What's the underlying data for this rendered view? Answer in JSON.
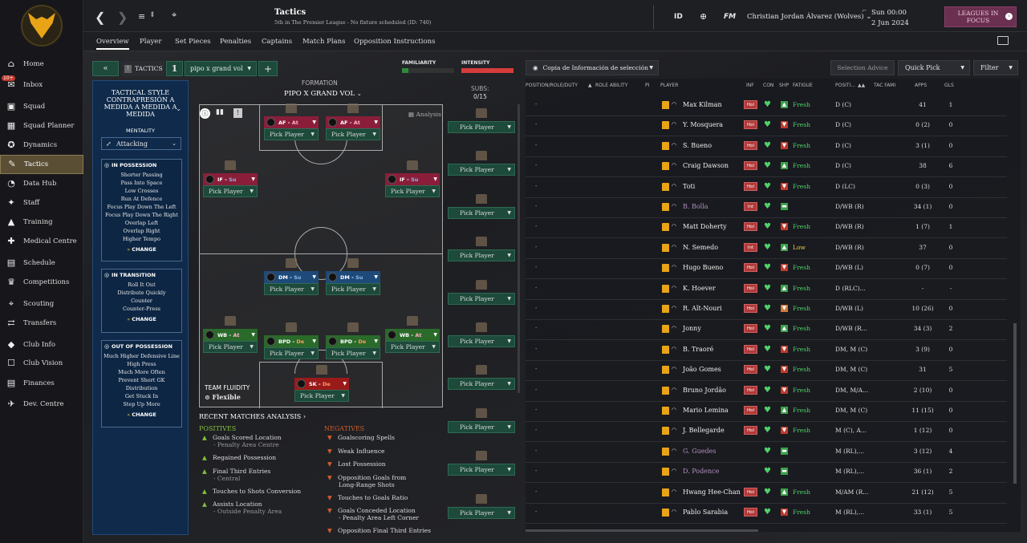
{
  "topbar": {
    "title": "Tactics",
    "subtitle": "5th in The Premier League - No fixture scheduled (ID: 740)",
    "id_label": "ID",
    "fm_label": "FM",
    "user": "Christian Jordan Álvarez (Wolves)",
    "time": "Sun 00:00",
    "date": "2 Jun 2024",
    "leagues_focus": "LEAGUES IN FOCUS"
  },
  "sidebar": {
    "inbox_badge": "10+",
    "items": [
      "Home",
      "Inbox",
      "Squad",
      "Squad Planner",
      "Dynamics",
      "Tactics",
      "Data Hub",
      "Staff",
      "Training",
      "Medical Centre",
      "Schedule",
      "Competitions",
      "Scouting",
      "Transfers",
      "Club Info",
      "Club Vision",
      "Finances",
      "Dev. Centre"
    ]
  },
  "subtabs": [
    "Overview",
    "Player",
    "Set Pieces",
    "Penalties",
    "Captains",
    "Match Plans",
    "Opposition Instructions"
  ],
  "tacbar": {
    "tactics_label": "TACTICS",
    "slot": "1",
    "tactic_name": "pipo x grand vol",
    "familiarity": "FAMILIARITY",
    "intensity": "INTENSITY"
  },
  "style": {
    "heading": "TACTICAL STYLE",
    "name": "CONTRAPRESIÓN A MEDIDA A MEDIDA A MEDIDA",
    "mentality_label": "MENTALITY",
    "mentality": "Attacking",
    "in_possession": {
      "title": "IN POSSESSION",
      "items": [
        "Shorter Passing",
        "Pass Into Space",
        "Low Crosses",
        "Run At Defence",
        "Focus Play Down The Left",
        "Focus Play Down The Right",
        "Overlap Left",
        "Overlap Right",
        "Higher Tempo"
      ]
    },
    "in_transition": {
      "title": "IN TRANSITION",
      "items": [
        "Roll It Out",
        "Distribute Quickly",
        "Counter",
        "Counter-Press"
      ]
    },
    "out_of_possession": {
      "title": "OUT OF POSSESSION",
      "items": [
        "Much Higher Defensive Line",
        "High Press",
        "Much More Often",
        "Prevent Short GK",
        "Distribution",
        "Get Stuck In",
        "Step Up More"
      ]
    },
    "change": "CHANGE"
  },
  "formation": {
    "label": "FORMATION",
    "name": "PIPO X GRAND VOL",
    "analysis": "Analysis",
    "fluidity_label": "TEAM FLUIDITY",
    "fluidity": "Flexible",
    "pick": "Pick Player",
    "positions": [
      {
        "role": "AF",
        "duty": "At",
        "color": "#8a1e3a"
      },
      {
        "role": "AF",
        "duty": "At",
        "color": "#8a1e3a"
      },
      {
        "role": "IF",
        "duty": "Su",
        "color": "#8a1e3a"
      },
      {
        "role": "IF",
        "duty": "Su",
        "color": "#8a1e3a"
      },
      {
        "role": "DM",
        "duty": "Su",
        "color": "#1e4a7a"
      },
      {
        "role": "DM",
        "duty": "Su",
        "color": "#1e4a7a"
      },
      {
        "role": "WB",
        "duty": "At",
        "color": "#2a6a2a"
      },
      {
        "role": "BPD",
        "duty": "De",
        "color": "#2a6a2a"
      },
      {
        "role": "BPD",
        "duty": "De",
        "color": "#2a6a2a"
      },
      {
        "role": "WB",
        "duty": "At",
        "color": "#2a6a2a"
      },
      {
        "role": "SK",
        "duty": "De",
        "color": "#9a1a1a"
      }
    ]
  },
  "subs": {
    "label": "SUBS:",
    "count": "0/15"
  },
  "recent": {
    "title": "RECENT MATCHES ANALYSIS",
    "positives_label": "POSITIVES",
    "negatives_label": "NEGATIVES",
    "positives": [
      {
        "t": "Goals Scored Location",
        "s": "- Penalty Area Centre"
      },
      {
        "t": "Regained Possession",
        "s": ""
      },
      {
        "t": "Final Third Entries",
        "s": "- Central"
      },
      {
        "t": "Touches to Shots Conversion",
        "s": ""
      },
      {
        "t": "Assists Location",
        "s": "- Outside Penalty Area"
      }
    ],
    "negatives": [
      {
        "t": "Goalscoring Spells",
        "s": ""
      },
      {
        "t": "Weak Influence",
        "s": ""
      },
      {
        "t": "Lost Possession",
        "s": ""
      },
      {
        "t": "Opposition Goals from",
        "s": "Long-Range Shots"
      },
      {
        "t": "Touches to Goals Ratio",
        "s": ""
      },
      {
        "t": "Goals Conceded Location",
        "s": "- Penalty Area Left Corner"
      },
      {
        "t": "Opposition Final Third Entries",
        "s": ""
      }
    ]
  },
  "right": {
    "copy_label": "Copia de Información de selección",
    "selection_advice": "Selection Advice",
    "quick_pick": "Quick Pick",
    "filter": "Filter",
    "headers": {
      "position": "POSITION/ROLE/DUTY",
      "role_ability": "ROLE ABILITY",
      "pi": "PI",
      "player": "PLAYER",
      "inf": "INF",
      "con": "CON",
      "shp": "SHP",
      "fatigue": "FATIGUE",
      "posit": "POSITI...",
      "tac": "TAC FAMI",
      "apps": "APPS",
      "gls": "GLS"
    },
    "players": [
      {
        "name": "Max Kilman",
        "inf": "Hol",
        "shp": "up",
        "fat": "Fresh",
        "pos": "D (C)",
        "apps": "41",
        "gls": "1"
      },
      {
        "name": "Y. Mosquera",
        "inf": "Hol",
        "shp": "down",
        "fat": "Fresh",
        "pos": "D (C)",
        "apps": "0 (2)",
        "gls": "0"
      },
      {
        "name": "S. Bueno",
        "inf": "Hol",
        "shp": "down",
        "fat": "Fresh",
        "pos": "D (C)",
        "apps": "3 (1)",
        "gls": "0"
      },
      {
        "name": "Craig Dawson",
        "inf": "Hol",
        "shp": "up",
        "fat": "Fresh",
        "pos": "D (C)",
        "apps": "38",
        "gls": "6"
      },
      {
        "name": "Toti",
        "inf": "Hol",
        "shp": "down",
        "fat": "Fresh",
        "pos": "D (LC)",
        "apps": "0 (3)",
        "gls": "0"
      },
      {
        "name": "B. Bolla",
        "inf": "Int",
        "shp": "flat",
        "fat": "",
        "pos": "D/WB (R)",
        "apps": "34 (1)",
        "gls": "0",
        "grey": true
      },
      {
        "name": "Matt Doherty",
        "inf": "Hol",
        "shp": "down",
        "fat": "Fresh",
        "pos": "D/WB (R)",
        "apps": "1 (7)",
        "gls": "1"
      },
      {
        "name": "N. Semedo",
        "inf": "Int",
        "shp": "up",
        "fat": "Low",
        "pos": "D/WB (R)",
        "apps": "37",
        "gls": "0",
        "low": true
      },
      {
        "name": "Hugo Bueno",
        "inf": "Hol",
        "shp": "down",
        "fat": "Fresh",
        "pos": "D/WB (L)",
        "apps": "0 (7)",
        "gls": "0"
      },
      {
        "name": "K. Hoever",
        "inf": "Hol",
        "shp": "up",
        "fat": "Fresh",
        "pos": "D (RLC)...",
        "apps": "-",
        "gls": "-"
      },
      {
        "name": "R. Aït-Nouri",
        "inf": "Hol",
        "shp": "downo",
        "fat": "Fresh",
        "pos": "D/WB (L)",
        "apps": "10 (26)",
        "gls": "0"
      },
      {
        "name": "Jonny",
        "inf": "Hol",
        "shp": "up",
        "fat": "Fresh",
        "pos": "D/WB (R...",
        "apps": "34 (3)",
        "gls": "2"
      },
      {
        "name": "B. Traoré",
        "inf": "Hol",
        "shp": "down",
        "fat": "Fresh",
        "pos": "DM, M (C)",
        "apps": "3 (9)",
        "gls": "0"
      },
      {
        "name": "João Gomes",
        "inf": "Hol",
        "shp": "down",
        "fat": "Fresh",
        "pos": "DM, M (C)",
        "apps": "31",
        "gls": "5"
      },
      {
        "name": "Bruno Jordão",
        "inf": "Hol",
        "shp": "down",
        "fat": "Fresh",
        "pos": "DM, M/A...",
        "apps": "2 (10)",
        "gls": "0"
      },
      {
        "name": "Mario Lemina",
        "inf": "Hol",
        "shp": "up",
        "fat": "Fresh",
        "pos": "DM, M (C)",
        "apps": "11 (15)",
        "gls": "0"
      },
      {
        "name": "J. Bellegarde",
        "inf": "Hol",
        "shp": "down",
        "fat": "Fresh",
        "pos": "M (C), A...",
        "apps": "1 (12)",
        "gls": "0"
      },
      {
        "name": "G. Guedes",
        "inf": "",
        "shp": "flat",
        "fat": "",
        "pos": "M (RL),...",
        "apps": "3 (12)",
        "gls": "4",
        "grey": true
      },
      {
        "name": "D. Podence",
        "inf": "",
        "shp": "flat",
        "fat": "",
        "pos": "M (RL),...",
        "apps": "36 (1)",
        "gls": "2",
        "grey": true
      },
      {
        "name": "Hwang Hee-Chan",
        "inf": "Hol",
        "shp": "up",
        "fat": "Fresh",
        "pos": "M/AM (R...",
        "apps": "21 (12)",
        "gls": "5"
      },
      {
        "name": "Pablo Sarabia",
        "inf": "Hol",
        "shp": "down",
        "fat": "Fresh",
        "pos": "M (RL),...",
        "apps": "33 (1)",
        "gls": "5"
      }
    ]
  }
}
